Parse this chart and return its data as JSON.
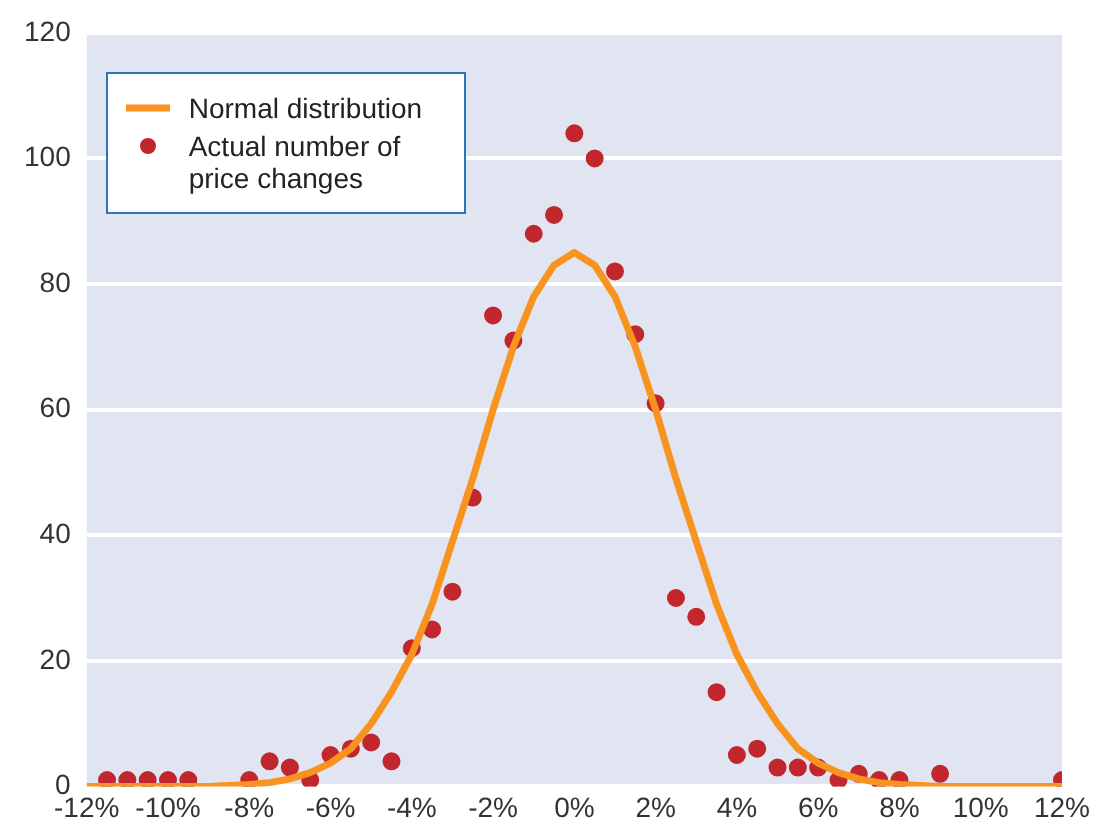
{
  "chart_data": {
    "type": "scatter",
    "xlim": [
      -12,
      12
    ],
    "ylim": [
      0,
      120
    ],
    "xticks": [
      {
        "value": -12,
        "label": "-12%"
      },
      {
        "value": -10,
        "label": "-10%"
      },
      {
        "value": -8,
        "label": "-8%"
      },
      {
        "value": -6,
        "label": "-6%"
      },
      {
        "value": -4,
        "label": "-4%"
      },
      {
        "value": -2,
        "label": "-2%"
      },
      {
        "value": 0,
        "label": "0%"
      },
      {
        "value": 2,
        "label": "2%"
      },
      {
        "value": 4,
        "label": "4%"
      },
      {
        "value": 6,
        "label": "6%"
      },
      {
        "value": 8,
        "label": "8%"
      },
      {
        "value": 10,
        "label": "10%"
      },
      {
        "value": 12,
        "label": "12%"
      }
    ],
    "yticks": [
      0,
      20,
      40,
      60,
      80,
      100,
      120
    ],
    "grid": "y",
    "legend": "top left",
    "series": [
      {
        "name": "Normal distribution",
        "type": "line",
        "color": "#f7931e",
        "marker": "none",
        "line_style": "solid",
        "x": [
          -12,
          -9,
          -8,
          -7.5,
          -7,
          -6.5,
          -6,
          -5.5,
          -5,
          -4.5,
          -4,
          -3.5,
          -3,
          -2.5,
          -2,
          -1.5,
          -1,
          -0.5,
          0,
          0.5,
          1,
          1.5,
          2,
          2.5,
          3,
          3.5,
          4,
          4.5,
          5,
          5.5,
          6,
          6.5,
          7,
          7.5,
          8,
          9,
          12
        ],
        "values": [
          0,
          0,
          0.3,
          0.6,
          1.2,
          2.2,
          3.7,
          6,
          10,
          15,
          21,
          29,
          39,
          49,
          60,
          70,
          78,
          83,
          85,
          83,
          78,
          70,
          60,
          49,
          39,
          29,
          21,
          15,
          10,
          6,
          3.7,
          2.2,
          1.2,
          0.6,
          0.3,
          0,
          0
        ]
      },
      {
        "name": "Actual number of price changes",
        "type": "scatter",
        "color": "#c1272d",
        "marker": "circle",
        "x": [
          -11.5,
          -11,
          -10.5,
          -10,
          -9.5,
          -8,
          -7.5,
          -7,
          -6.5,
          -6,
          -5.5,
          -5,
          -4.5,
          -4,
          -3.5,
          -3,
          -2.5,
          -2,
          -1.5,
          -1,
          -0.5,
          0,
          0.5,
          1,
          1.5,
          2,
          2.5,
          3,
          3.5,
          4,
          4.5,
          5,
          5.5,
          6,
          6.5,
          7,
          7.5,
          8,
          9,
          12
        ],
        "values": [
          1,
          1,
          1,
          1,
          1,
          1,
          4,
          3,
          1,
          5,
          6,
          7,
          4,
          22,
          25,
          31,
          46,
          75,
          71,
          88,
          91,
          104,
          100,
          82,
          72,
          61,
          30,
          27,
          15,
          5,
          6,
          3,
          3,
          3,
          1,
          2,
          1,
          1,
          2,
          1
        ]
      }
    ]
  }
}
